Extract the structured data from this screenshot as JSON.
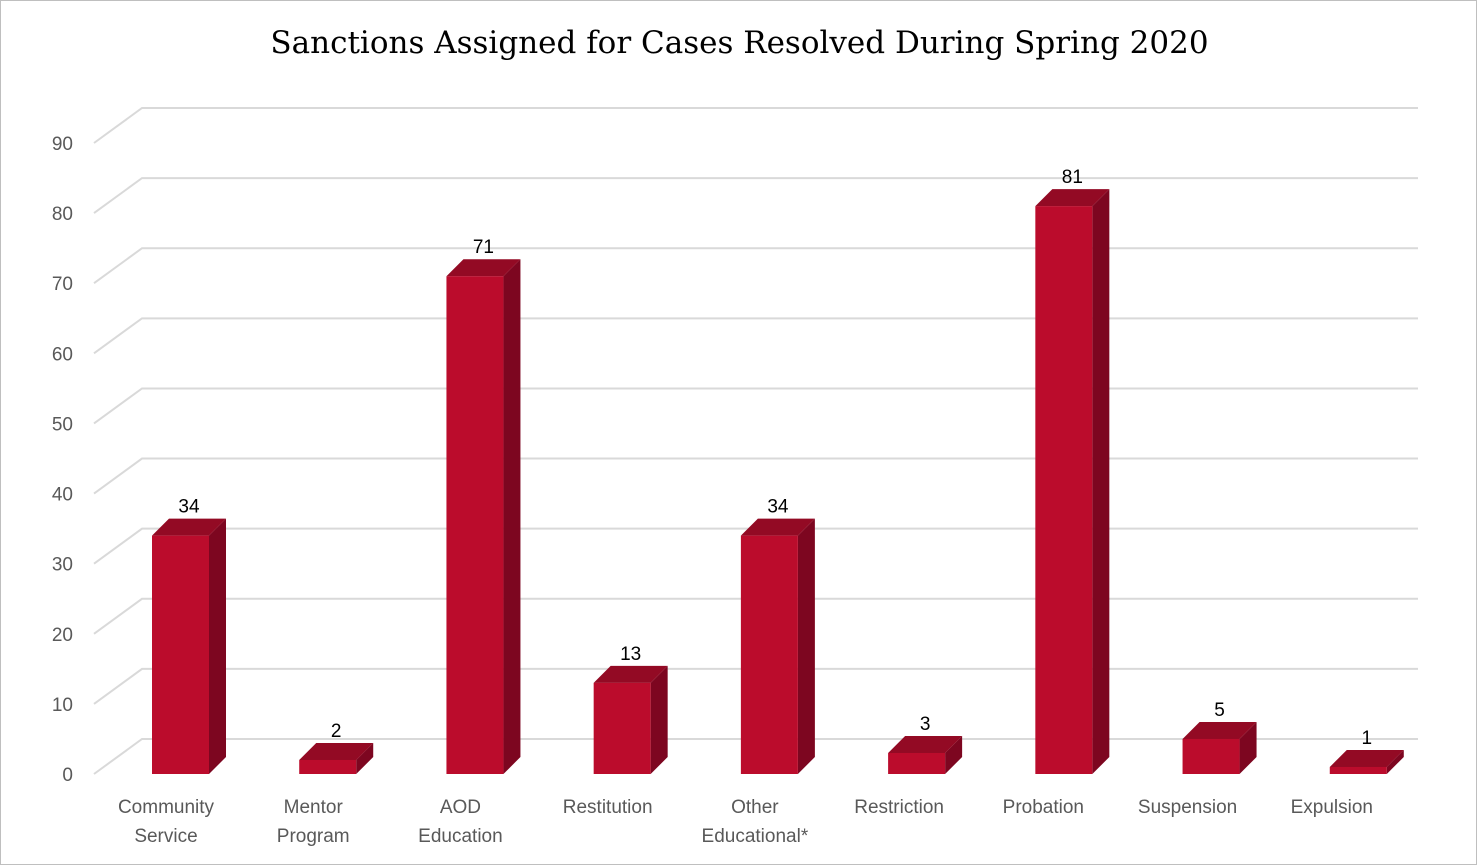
{
  "chart_data": {
    "type": "bar",
    "title": "Sanctions Assigned for Cases Resolved During Spring 2020",
    "categories": [
      [
        "Community",
        "Service"
      ],
      [
        "Mentor",
        "Program"
      ],
      [
        "AOD",
        "Education"
      ],
      [
        "Restitution"
      ],
      [
        "Other",
        "Educational*"
      ],
      [
        "Restriction"
      ],
      [
        "Probation"
      ],
      [
        "Suspension"
      ],
      [
        "Expulsion"
      ]
    ],
    "values": [
      34,
      2,
      71,
      13,
      34,
      3,
      81,
      5,
      1
    ],
    "ylim": [
      0,
      90
    ],
    "yticks": [
      0,
      10,
      20,
      30,
      40,
      50,
      60,
      70,
      80,
      90
    ],
    "grid": true,
    "data_labels": true,
    "colors": {
      "front": "#bb0c2c",
      "side": "#7d0620",
      "top": "#930a24",
      "grid": "#d9d9d9"
    }
  }
}
